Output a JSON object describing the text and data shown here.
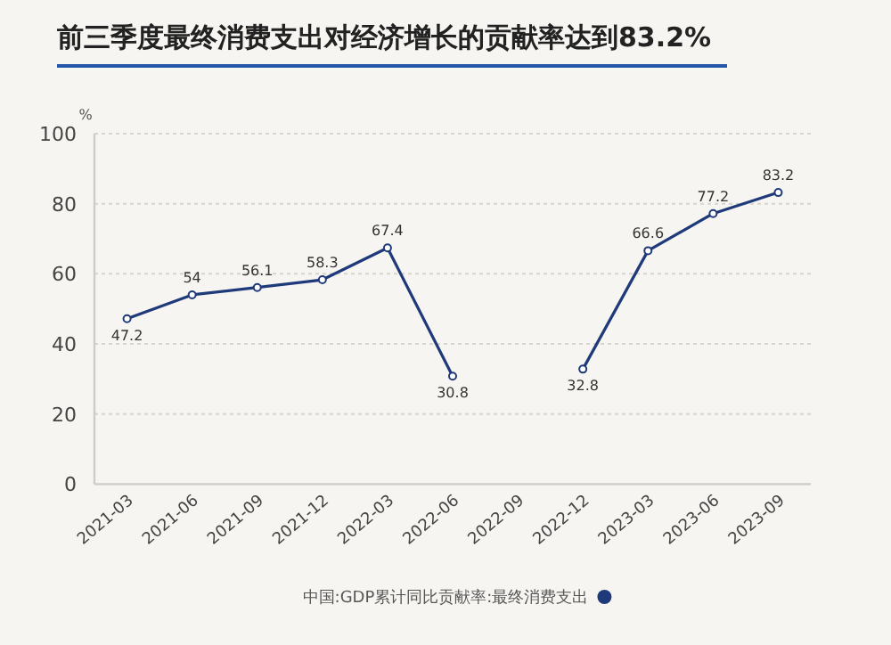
{
  "chart_data": {
    "type": "line",
    "title": "前三季度最终消费支出对经济增长的贡献率达到83.2%",
    "ylabel": "%",
    "categories": [
      "2021-03",
      "2021-06",
      "2021-09",
      "2021-12",
      "2022-03",
      "2022-06",
      "2022-09",
      "2022-12",
      "2023-03",
      "2023-06",
      "2023-09"
    ],
    "series": [
      {
        "name": "中国:GDP累计同比贡献率:最终消费支出",
        "color": "#1f3a7a",
        "values": [
          47.2,
          54,
          56.1,
          58.3,
          67.4,
          30.8,
          null,
          32.8,
          66.6,
          77.2,
          83.2
        ]
      }
    ],
    "ylim": [
      0,
      100
    ],
    "yticks": [
      0,
      20,
      40,
      60,
      80,
      100
    ],
    "grid": "y",
    "legend": "bottom",
    "marker": "circle",
    "data_labels": true
  }
}
